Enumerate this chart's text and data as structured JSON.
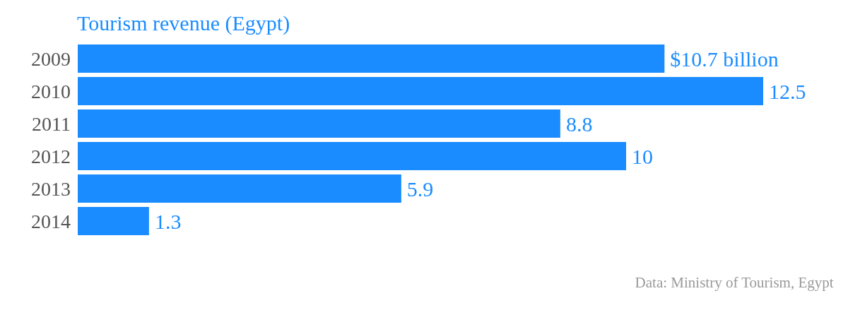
{
  "chart_data": {
    "type": "bar",
    "orientation": "horizontal",
    "title": "Tourism revenue (Egypt)",
    "categories": [
      "2009",
      "2010",
      "2011",
      "2012",
      "2013",
      "2014"
    ],
    "values": [
      10.7,
      12.5,
      8.8,
      10,
      5.9,
      1.3
    ],
    "value_labels": [
      "$10.7 billion",
      "12.5",
      "8.8",
      "10",
      "5.9",
      "1.3"
    ],
    "color": "#1a8cff",
    "annotations": [
      "Data: Ministry of Tourism, Egypt"
    ]
  }
}
